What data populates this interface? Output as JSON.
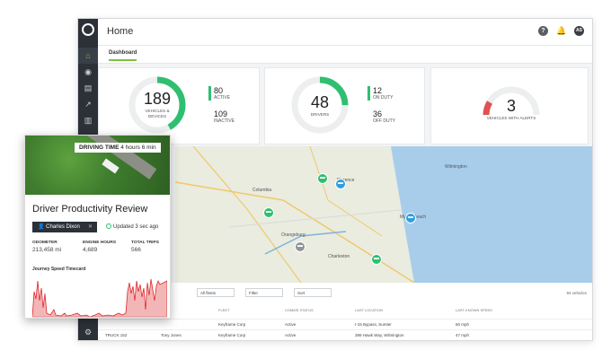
{
  "app": {
    "title": "Home",
    "tab": "Dashboard",
    "help_icon": "?",
    "avatar_initials": "AS"
  },
  "cards": {
    "vehicles": {
      "total": "189",
      "label": "VEHICLES & DEVICES",
      "active": "80",
      "active_label": "ACTIVE",
      "inactive": "109",
      "inactive_label": "INACTIVE"
    },
    "drivers": {
      "total": "48",
      "label": "DRIVERS",
      "on_duty": "12",
      "on_duty_label": "ON DUTY",
      "off_duty": "36",
      "off_duty_label": "OFF DUTY"
    },
    "alerts": {
      "total": "3",
      "label": "VEHICLES WITH ALERTS"
    }
  },
  "map": {
    "cities": [
      "Columbia",
      "Florence",
      "Myrtle Beach",
      "Orangeburg",
      "Charleston",
      "Wilmington"
    ]
  },
  "table": {
    "filters": [
      "All fleets",
      "Filter",
      "Sort"
    ],
    "vehicle_count": "94 vehicles",
    "headers": [
      "FLEET",
      "COMMS STATUS",
      "LAST LOCATION",
      "LAST KNOWN SPEED"
    ],
    "rows": [
      {
        "vehicle": "",
        "driver": "",
        "fleet": "Keyframe Corp",
        "status": "Active",
        "location": "I-15 Bypass, Sumter",
        "speed": "60 mph"
      },
      {
        "vehicle": "TRUCK 152",
        "driver": "Tony Jones",
        "fleet": "Keyframe Corp",
        "status": "Active",
        "location": "399 Hawk Way, Wilmington",
        "speed": "47 mph"
      }
    ]
  },
  "overlay": {
    "driving_label": "DRIVING TIME",
    "driving_value": "4 hours 6 min",
    "title": "Driver Productivity Review",
    "driver_name": "Charles Dixon",
    "updated": "Updated 3 sec ago",
    "stats": [
      {
        "label": "ODOMETER",
        "value": "213,458 mi"
      },
      {
        "label": "ENGINE HOURS",
        "value": "4,689"
      },
      {
        "label": "TOTAL TRIPS",
        "value": "566"
      }
    ],
    "chart_title": "Journey Speed Timecard"
  },
  "colors": {
    "green": "#2fbf71",
    "alert": "#e05252",
    "sidebar": "#2c3138",
    "chart_line": "#e0262b"
  }
}
